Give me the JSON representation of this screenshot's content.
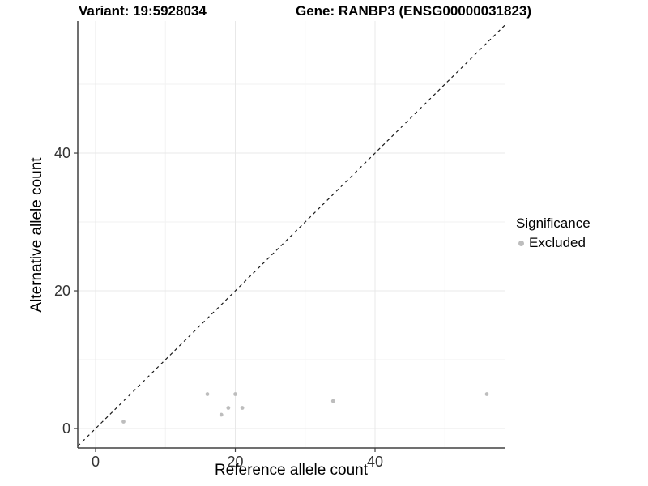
{
  "chart_data": {
    "type": "scatter",
    "title_left": "Variant: 19:5928034",
    "title_right": "Gene: RANBP3 (ENSG00000031823)",
    "xlabel": "Reference allele count",
    "ylabel": "Alternative allele count",
    "xlim": [
      -2.55,
      58.55
    ],
    "ylim": [
      -2.82,
      59.18
    ],
    "x_ticks": [
      0,
      20,
      40
    ],
    "y_ticks": [
      0,
      20,
      40
    ],
    "x_minor_ticks": [
      10,
      30,
      50
    ],
    "y_minor_ticks": [
      10,
      30,
      50
    ],
    "grid": true,
    "identity_line": {
      "slope": 1,
      "intercept": 0,
      "style": "dashed",
      "color": "#1a1a1a"
    },
    "series": [
      {
        "name": "Excluded",
        "color": "#bdbdbd",
        "points": [
          [
            4,
            1
          ],
          [
            16,
            5
          ],
          [
            18,
            2
          ],
          [
            19,
            3
          ],
          [
            20,
            5
          ],
          [
            21,
            3
          ],
          [
            34,
            4
          ],
          [
            56,
            5
          ]
        ]
      }
    ],
    "legend": {
      "title": "Significance",
      "position": "right",
      "entries": [
        {
          "label": "Excluded",
          "color": "#bdbdbd"
        }
      ]
    },
    "colors": {
      "axis_line": "#404040",
      "tick_label": "#333333",
      "grid_major": "#e8e8e8",
      "grid_minor": "#f2f2f2",
      "background": "#ffffff"
    }
  }
}
